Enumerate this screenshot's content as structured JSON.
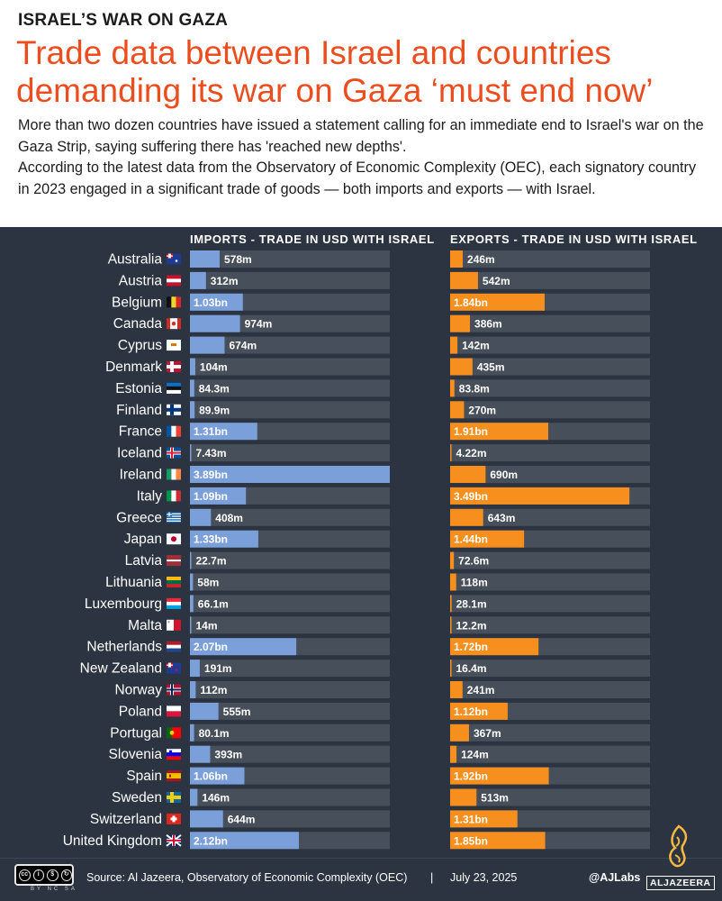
{
  "header": {
    "kicker": "ISRAEL’S WAR ON GAZA",
    "title": "Trade data between Israel and countries demanding its war on Gaza ‘must end now’",
    "description_1": "More than two dozen countries have issued a statement calling for an immediate end to Israel's war on the Gaza Strip, saying suffering there has 'reached new depths'.",
    "description_2": "According to the latest data from the Observatory of Economic Complexity (OEC), each signatory country in 2023 engaged in a significant trade of goods — both imports and exports — with Israel."
  },
  "colors": {
    "imports_bar": "#7b9fd9",
    "exports_bar": "#f78f1e",
    "track": "#474f5a",
    "panel": "#2b3440",
    "title": "#ec4d1f"
  },
  "chart_data": {
    "type": "bar",
    "orientation": "horizontal",
    "title": "Trade data between Israel and countries demanding its war on Gaza ‘must end now’",
    "categories": [
      "Australia",
      "Austria",
      "Belgium",
      "Canada",
      "Cyprus",
      "Denmark",
      "Estonia",
      "Finland",
      "France",
      "Iceland",
      "Ireland",
      "Italy",
      "Greece",
      "Japan",
      "Latvia",
      "Lithuania",
      "Luxembourg",
      "Malta",
      "Netherlands",
      "New Zealand",
      "Norway",
      "Poland",
      "Portugal",
      "Slovenia",
      "Spain",
      "Sweden",
      "Switzerland",
      "United Kingdom"
    ],
    "series": [
      {
        "name": "IMPORTS - TRADE IN USD WITH ISRAEL",
        "unit": "USD",
        "values": [
          578000000,
          312000000,
          1030000000,
          974000000,
          674000000,
          104000000,
          84300000,
          89900000,
          1310000000,
          7430000,
          3890000000,
          1090000000,
          408000000,
          1330000000,
          22700000,
          58000000,
          66100000,
          14000000,
          2070000000,
          191000000,
          112000000,
          555000000,
          80100000,
          393000000,
          1060000000,
          146000000,
          644000000,
          2120000000
        ],
        "labels": [
          "578m",
          "312m",
          "1.03bn",
          "974m",
          "674m",
          "104m",
          "84.3m",
          "89.9m",
          "1.31bn",
          "7.43m",
          "3.89bn",
          "1.09bn",
          "408m",
          "1.33bn",
          "22.7m",
          "58m",
          "66.1m",
          "14m",
          "2.07bn",
          "191m",
          "112m",
          "555m",
          "80.1m",
          "393m",
          "1.06bn",
          "146m",
          "644m",
          "2.12bn"
        ],
        "xlim": [
          0,
          3890000000
        ]
      },
      {
        "name": "EXPORTS - TRADE IN USD WITH ISRAEL",
        "unit": "USD",
        "values": [
          246000000,
          542000000,
          1840000000,
          386000000,
          142000000,
          435000000,
          83800000,
          270000000,
          1910000000,
          4220000,
          690000000,
          3490000000,
          643000000,
          1440000000,
          72600000,
          118000000,
          28100000,
          12200000,
          1720000000,
          16400000,
          241000000,
          1120000000,
          367000000,
          124000000,
          1920000000,
          513000000,
          1310000000,
          1850000000
        ],
        "labels": [
          "246m",
          "542m",
          "1.84bn",
          "386m",
          "142m",
          "435m",
          "83.8m",
          "270m",
          "1.91bn",
          "4.22m",
          "690m",
          "3.49bn",
          "643m",
          "1.44bn",
          "72.6m",
          "118m",
          "28.1m",
          "12.2m",
          "1.72bn",
          "16.4m",
          "241m",
          "1.12bn",
          "367m",
          "124m",
          "1.92bn",
          "513m",
          "1.31bn",
          "1.85bn"
        ],
        "xlim": [
          0,
          3890000000
        ]
      }
    ],
    "flags": [
      "australia-flag-icon",
      "austria-flag-icon",
      "belgium-flag-icon",
      "canada-flag-icon",
      "cyprus-flag-icon",
      "denmark-flag-icon",
      "estonia-flag-icon",
      "finland-flag-icon",
      "france-flag-icon",
      "iceland-flag-icon",
      "ireland-flag-icon",
      "italy-flag-icon",
      "greece-flag-icon",
      "japan-flag-icon",
      "latvia-flag-icon",
      "lithuania-flag-icon",
      "luxembourg-flag-icon",
      "malta-flag-icon",
      "netherlands-flag-icon",
      "new-zealand-flag-icon",
      "norway-flag-icon",
      "poland-flag-icon",
      "portugal-flag-icon",
      "slovenia-flag-icon",
      "spain-flag-icon",
      "sweden-flag-icon",
      "switzerland-flag-icon",
      "united-kingdom-flag-icon"
    ]
  },
  "footer": {
    "license_icon": "creative-commons-by-nc-sa-icon",
    "source": "Source: Al Jazeera, Observatory of Economic Complexity (OEC)",
    "separator": "|",
    "date": "July 23, 2025",
    "handle": "@AJLabs",
    "logo_text": "ALJAZEERA"
  }
}
